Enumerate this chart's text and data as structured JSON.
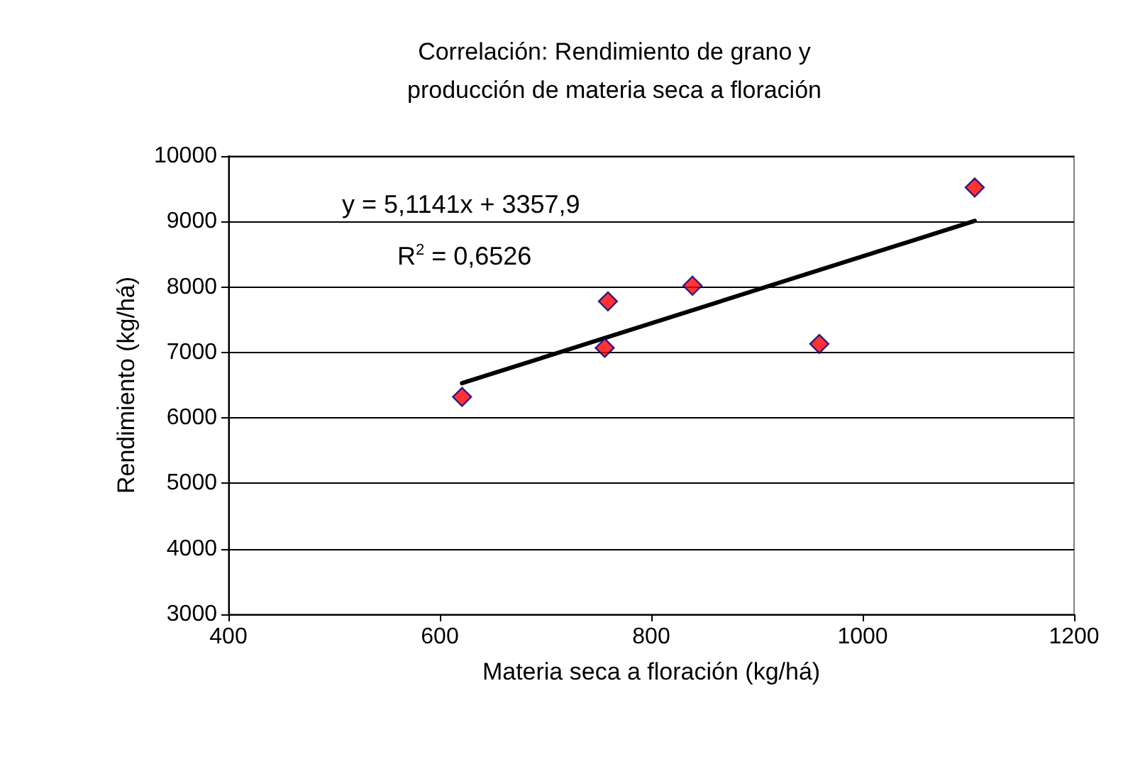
{
  "chart_data": {
    "type": "scatter",
    "title": "Correlación: Rendimiento de grano y\nproducción de materia seca a floración",
    "xlabel": "Materia seca a floración (kg/há)",
    "ylabel": "Rendimiento (kg/há)",
    "xlim": [
      400,
      1200
    ],
    "xticks": [
      400,
      600,
      800,
      1000,
      1200
    ],
    "ylim": [
      3000,
      10000
    ],
    "yticks": [
      3000,
      4000,
      5000,
      6000,
      7000,
      8000,
      9000,
      10000
    ],
    "grid": "y",
    "series": [
      {
        "color": "#ff0000",
        "marker": "diamond",
        "x": [
          621,
          756,
          759,
          839,
          959,
          1106
        ],
        "values": [
          6320,
          7070,
          7780,
          8020,
          7130,
          9520
        ]
      },
      {
        "type": "line",
        "color": "#000000",
        "marker": "none",
        "line_style": "solid",
        "x": [
          621,
          1106
        ],
        "values": [
          6530,
          9010
        ]
      }
    ],
    "annotations": [
      "y = 5,1141x + 3357,9",
      "R$^{2}$ = 0,6526"
    ]
  }
}
